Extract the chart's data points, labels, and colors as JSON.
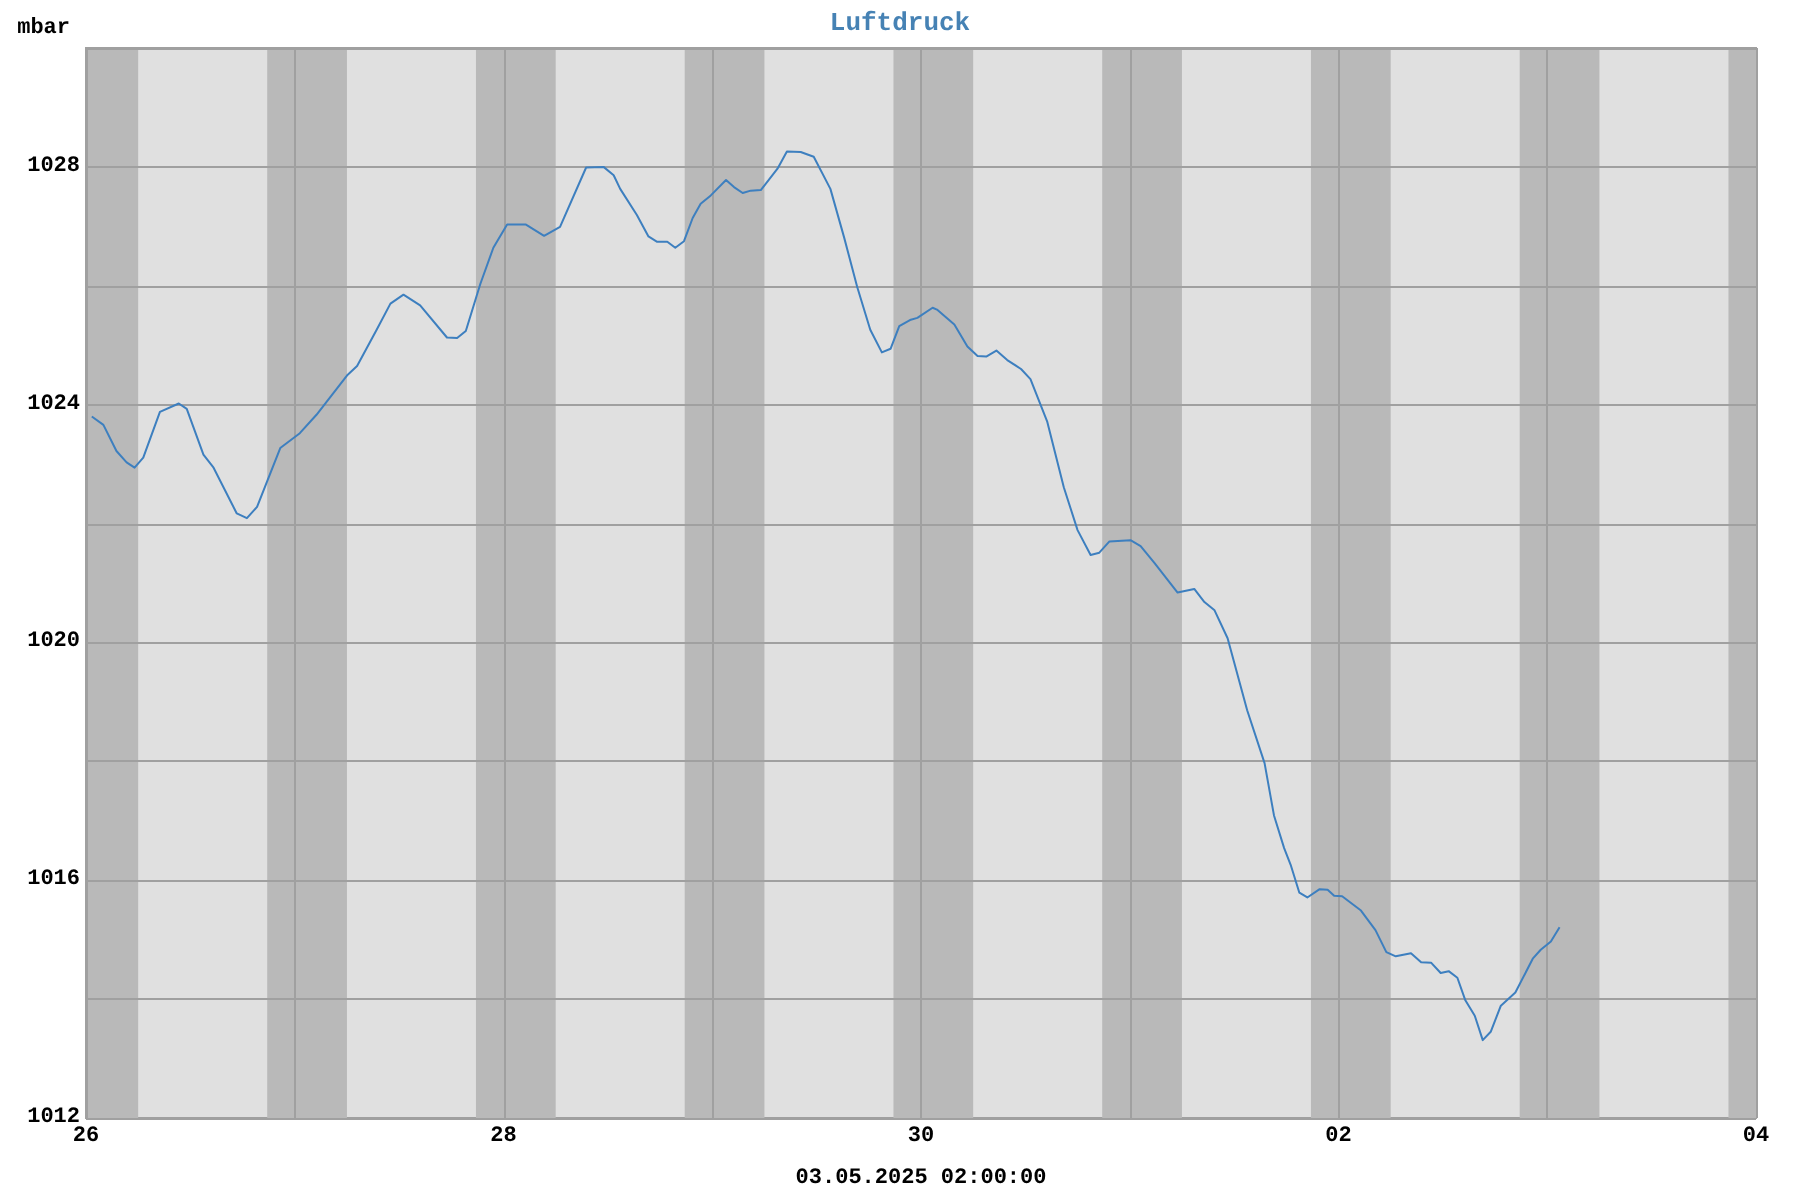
{
  "chart_data": {
    "type": "line",
    "title": "Luftdruck",
    "xlabel": "03.05.2025 02:00:00",
    "ylabel": "mbar",
    "x": [
      "2025-04-26T00:40",
      "2025-04-26T02:00",
      "2025-04-26T03:30",
      "2025-04-26T04:40",
      "2025-04-26T05:35",
      "2025-04-26T06:35",
      "2025-04-26T08:30",
      "2025-04-26T10:40",
      "2025-04-26T11:35",
      "2025-04-26T13:30",
      "2025-04-26T14:40",
      "2025-04-26T17:20",
      "2025-04-26T18:30",
      "2025-04-26T19:40",
      "2025-04-26T22:20",
      "2025-04-27T00:35",
      "2025-04-27T02:30",
      "2025-04-27T06:00",
      "2025-04-27T07:10",
      "2025-04-27T09:25",
      "2025-04-27T11:00",
      "2025-04-27T12:30",
      "2025-04-27T14:25",
      "2025-04-27T17:30",
      "2025-04-27T18:40",
      "2025-04-27T19:40",
      "2025-04-27T21:20",
      "2025-04-27T22:50",
      "2025-04-28T00:25",
      "2025-04-28T02:35",
      "2025-04-28T04:40",
      "2025-04-28T06:30",
      "2025-04-28T09:30",
      "2025-04-28T11:30",
      "2025-04-28T12:40",
      "2025-04-28T13:25",
      "2025-04-28T15:20",
      "2025-04-28T16:40",
      "2025-04-28T17:40",
      "2025-04-28T18:50",
      "2025-04-28T19:45",
      "2025-04-28T20:45",
      "2025-04-28T21:45",
      "2025-04-28T22:40",
      "2025-04-28T23:50",
      "2025-04-29T01:35",
      "2025-04-29T02:30",
      "2025-04-29T03:30",
      "2025-04-29T04:25",
      "2025-04-29T05:35",
      "2025-04-29T07:30",
      "2025-04-29T08:35",
      "2025-04-29T10:10",
      "2025-04-29T11:40",
      "2025-04-29T13:35",
      "2025-04-29T15:10",
      "2025-04-29T16:40",
      "2025-04-29T18:10",
      "2025-04-29T19:30",
      "2025-04-29T20:30",
      "2025-04-29T21:30",
      "2025-04-29T22:50",
      "2025-04-29T23:35",
      "2025-04-30T01:20",
      "2025-04-30T01:50",
      "2025-04-30T03:50",
      "2025-04-30T05:20",
      "2025-04-30T06:30",
      "2025-04-30T07:30",
      "2025-04-30T08:40",
      "2025-04-30T09:55",
      "2025-04-30T11:30",
      "2025-04-30T12:35",
      "2025-04-30T14:30",
      "2025-04-30T16:25",
      "2025-04-30T18:00",
      "2025-04-30T19:30",
      "2025-04-30T20:30",
      "2025-04-30T21:40",
      "2025-05-01T00:05",
      "2025-05-01T01:15",
      "2025-05-01T02:50",
      "2025-05-01T05:30",
      "2025-05-01T07:25",
      "2025-05-01T08:35",
      "2025-05-01T09:45",
      "2025-05-01T11:15",
      "2025-05-01T13:30",
      "2025-05-01T15:30",
      "2025-05-01T16:35",
      "2025-05-01T17:45",
      "2025-05-01T18:30",
      "2025-05-01T19:30",
      "2025-05-01T20:25",
      "2025-05-01T21:50",
      "2025-05-01T22:45",
      "2025-05-01T23:30",
      "2025-05-02T00:25",
      "2025-05-02T02:35",
      "2025-05-02T04:15",
      "2025-05-02T05:30",
      "2025-05-02T06:35",
      "2025-05-02T08:20",
      "2025-05-02T09:30",
      "2025-05-02T10:40",
      "2025-05-02T11:45",
      "2025-05-02T12:40",
      "2025-05-02T13:40",
      "2025-05-02T14:35",
      "2025-05-02T15:40",
      "2025-05-02T16:35",
      "2025-05-02T17:30",
      "2025-05-02T18:40",
      "2025-05-02T20:20",
      "2025-05-02T22:20",
      "2025-05-02T23:15",
      "2025-05-03T00:25",
      "2025-05-03T01:25"
    ],
    "series": [
      {
        "color": "#3d7fbf",
        "values": [
          1023.8,
          1023.66,
          1023.22,
          1023.03,
          1022.94,
          1023.11,
          1023.88,
          1024.02,
          1023.93,
          1023.16,
          1022.94,
          1022.17,
          1022.09,
          1022.28,
          1023.27,
          1023.52,
          1023.83,
          1024.49,
          1024.65,
          1025.26,
          1025.7,
          1025.85,
          1025.67,
          1025.13,
          1025.12,
          1025.24,
          1026.03,
          1026.64,
          1027.03,
          1027.03,
          1026.84,
          1026.99,
          1027.99,
          1028.0,
          1027.86,
          1027.63,
          1027.19,
          1026.83,
          1026.74,
          1026.74,
          1026.64,
          1026.75,
          1027.14,
          1027.38,
          1027.52,
          1027.78,
          1027.66,
          1027.56,
          1027.6,
          1027.61,
          1027.97,
          1028.26,
          1028.25,
          1028.17,
          1027.63,
          1026.81,
          1025.98,
          1025.26,
          1024.88,
          1024.94,
          1025.32,
          1025.43,
          1025.46,
          1025.63,
          1025.6,
          1025.35,
          1024.98,
          1024.82,
          1024.81,
          1024.91,
          1024.75,
          1024.6,
          1024.43,
          1023.72,
          1022.61,
          1021.89,
          1021.47,
          1021.51,
          1021.7,
          1021.72,
          1021.62,
          1021.34,
          1020.84,
          1020.9,
          1020.68,
          1020.54,
          1020.07,
          1018.86,
          1017.97,
          1017.09,
          1016.54,
          1016.26,
          1015.79,
          1015.71,
          1015.85,
          1015.84,
          1015.74,
          1015.73,
          1015.49,
          1015.16,
          1014.79,
          1014.72,
          1014.77,
          1014.62,
          1014.61,
          1014.44,
          1014.47,
          1014.36,
          1013.98,
          1013.72,
          1013.31,
          1013.45,
          1013.89,
          1014.11,
          1014.68,
          1014.83,
          1014.97,
          1015.21
        ]
      }
    ],
    "xlim": [
      "2025-04-26",
      "2025-05-04"
    ],
    "xticks": [
      {
        "value": "2025-04-26",
        "label": "26"
      },
      {
        "value": "2025-04-27",
        "label": null
      },
      {
        "value": "2025-04-28",
        "label": "28"
      },
      {
        "value": "2025-04-29",
        "label": null
      },
      {
        "value": "2025-04-30",
        "label": "30"
      },
      {
        "value": "2025-05-01",
        "label": null
      },
      {
        "value": "2025-05-02",
        "label": "02"
      },
      {
        "value": "2025-05-03",
        "label": null
      },
      {
        "value": "2025-05-04",
        "label": "04"
      }
    ],
    "ylim": [
      1012,
      1030
    ],
    "yticks": [
      1012,
      {
        "value": 1014,
        "label": null
      },
      1016,
      {
        "value": 1018,
        "label": null
      },
      1020,
      {
        "value": 1022,
        "label": null
      },
      1024,
      {
        "value": 1026,
        "label": null
      },
      1028,
      {
        "value": 1030,
        "label": null
      }
    ],
    "bands": [
      {
        "axis": "x",
        "from": "2025-04-26T00:00",
        "to": "2025-04-26T06:00",
        "color": "#b9b9b9"
      },
      {
        "axis": "x",
        "from": "2025-04-26T20:50",
        "to": "2025-04-27T06:00",
        "color": "#b9b9b9"
      },
      {
        "axis": "x",
        "from": "2025-04-27T20:50",
        "to": "2025-04-28T06:00",
        "color": "#b9b9b9"
      },
      {
        "axis": "x",
        "from": "2025-04-28T20:50",
        "to": "2025-04-29T06:00",
        "color": "#b9b9b9"
      },
      {
        "axis": "x",
        "from": "2025-04-29T20:50",
        "to": "2025-04-30T06:00",
        "color": "#b9b9b9"
      },
      {
        "axis": "x",
        "from": "2025-04-30T20:50",
        "to": "2025-05-01T06:00",
        "color": "#b9b9b9"
      },
      {
        "axis": "x",
        "from": "2025-05-01T20:50",
        "to": "2025-05-02T06:00",
        "color": "#b9b9b9"
      },
      {
        "axis": "x",
        "from": "2025-05-02T20:50",
        "to": "2025-05-03T06:00",
        "color": "#b9b9b9"
      },
      {
        "axis": "x",
        "from": "2025-05-03T20:50",
        "to": "2025-05-04T00:00",
        "color": "#b9b9b9"
      }
    ],
    "grid": true,
    "marker": "none",
    "line_style": "solid"
  }
}
